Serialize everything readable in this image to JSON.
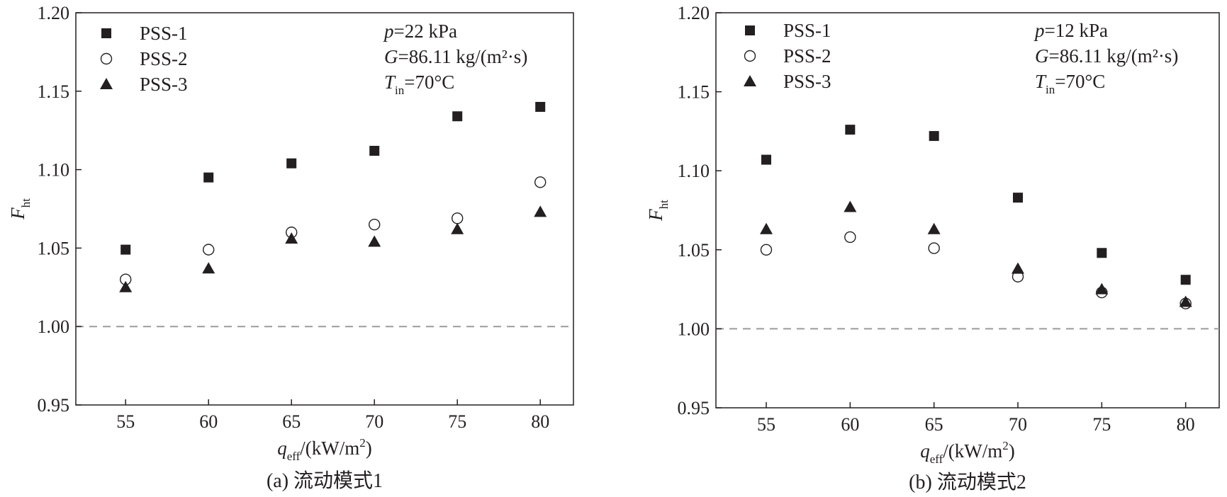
{
  "chart_data": [
    {
      "type": "scatter",
      "caption": "(a) 流动模式1",
      "xlabel": {
        "symbol": "q",
        "subscript": "eff",
        "unit": "/(kW/m",
        "sup": "2",
        "close": ")"
      },
      "ylabel": {
        "symbol": "F",
        "subscript": "ht"
      },
      "xlim": [
        52,
        82
      ],
      "ylim": [
        0.95,
        1.2
      ],
      "xticks": [
        "55",
        "60",
        "65",
        "70",
        "75",
        "80"
      ],
      "yticks": [
        "0.95",
        "1.00",
        "1.05",
        "1.10",
        "1.15",
        "1.20"
      ],
      "x": [
        55,
        60,
        65,
        70,
        75,
        80
      ],
      "reference_line": 1.0,
      "grid": false,
      "legend_position": "top-left",
      "conditions": [
        {
          "symbol": "p",
          "sub": "",
          "text": "=22 kPa"
        },
        {
          "symbol": "G",
          "sub": "",
          "text": "=86.11 kg/(m²·s)"
        },
        {
          "symbol": "T",
          "sub": "in",
          "text": "=70°C"
        }
      ],
      "series": [
        {
          "name": "PSS-1",
          "marker": "square",
          "values": [
            1.049,
            1.095,
            1.104,
            1.112,
            1.134,
            1.14
          ]
        },
        {
          "name": "PSS-2",
          "marker": "circle",
          "values": [
            1.03,
            1.049,
            1.06,
            1.065,
            1.069,
            1.092
          ]
        },
        {
          "name": "PSS-3",
          "marker": "triangle",
          "values": [
            1.025,
            1.037,
            1.056,
            1.054,
            1.062,
            1.073
          ]
        }
      ]
    },
    {
      "type": "scatter",
      "caption": "(b) 流动模式2",
      "xlabel": {
        "symbol": "q",
        "subscript": "eff",
        "unit": "/(kW/m",
        "sup": "2",
        "close": ")"
      },
      "ylabel": {
        "symbol": "F",
        "subscript": "ht"
      },
      "xlim": [
        52,
        82
      ],
      "ylim": [
        0.95,
        1.2
      ],
      "xticks": [
        "55",
        "60",
        "65",
        "70",
        "75",
        "80"
      ],
      "yticks": [
        "0.95",
        "1.00",
        "1.05",
        "1.10",
        "1.15",
        "1.20"
      ],
      "x": [
        55,
        60,
        65,
        70,
        75,
        80
      ],
      "reference_line": 1.0,
      "grid": false,
      "legend_position": "top-left",
      "conditions": [
        {
          "symbol": "p",
          "sub": "",
          "text": "=12 kPa"
        },
        {
          "symbol": "G",
          "sub": "",
          "text": "=86.11 kg/(m²·s)"
        },
        {
          "symbol": "T",
          "sub": "in",
          "text": "=70°C"
        }
      ],
      "series": [
        {
          "name": "PSS-1",
          "marker": "square",
          "values": [
            1.107,
            1.126,
            1.122,
            1.083,
            1.048,
            1.031
          ]
        },
        {
          "name": "PSS-2",
          "marker": "circle",
          "values": [
            1.05,
            1.058,
            1.051,
            1.033,
            1.023,
            1.016
          ]
        },
        {
          "name": "PSS-3",
          "marker": "triangle",
          "values": [
            1.063,
            1.077,
            1.063,
            1.038,
            1.025,
            1.017
          ]
        }
      ]
    }
  ],
  "colors": {
    "ink": "#231f20",
    "reference_line": "#9b9b9b"
  }
}
